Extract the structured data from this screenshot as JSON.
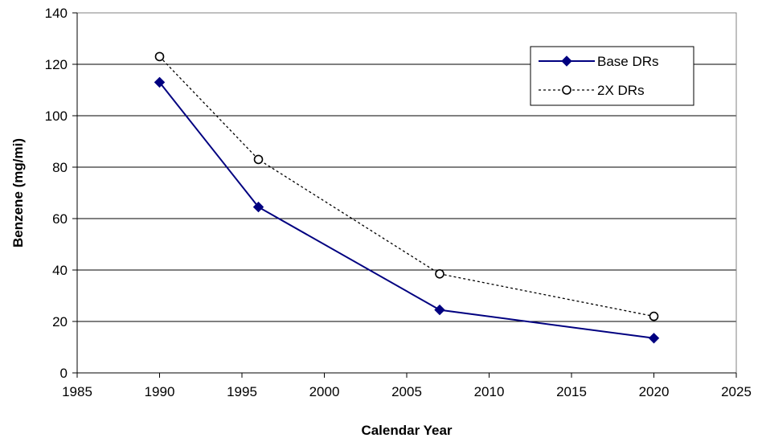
{
  "chart_data": {
    "type": "line",
    "title": "",
    "xlabel": "Calendar Year",
    "ylabel": "Benzene (mg/mi)",
    "xlim": [
      1985,
      2025
    ],
    "ylim": [
      0,
      140
    ],
    "xticks": [
      1985,
      1990,
      1995,
      2000,
      2005,
      2010,
      2015,
      2020,
      2025
    ],
    "yticks": [
      0,
      20,
      40,
      60,
      80,
      100,
      120,
      140
    ],
    "grid": "horizontal",
    "legend_position": "top-right",
    "series": [
      {
        "name": "Base DRs",
        "color": "#000080",
        "line_style": "solid",
        "marker": "diamond",
        "x": [
          1990,
          1996,
          2007,
          2020
        ],
        "values": [
          113,
          64.5,
          24.5,
          13.5
        ]
      },
      {
        "name": "2X DRs",
        "color": "#000000",
        "line_style": "dotted",
        "marker": "open-circle",
        "x": [
          1990,
          1996,
          2007,
          2020
        ],
        "values": [
          123,
          83,
          38.5,
          22
        ]
      }
    ]
  }
}
